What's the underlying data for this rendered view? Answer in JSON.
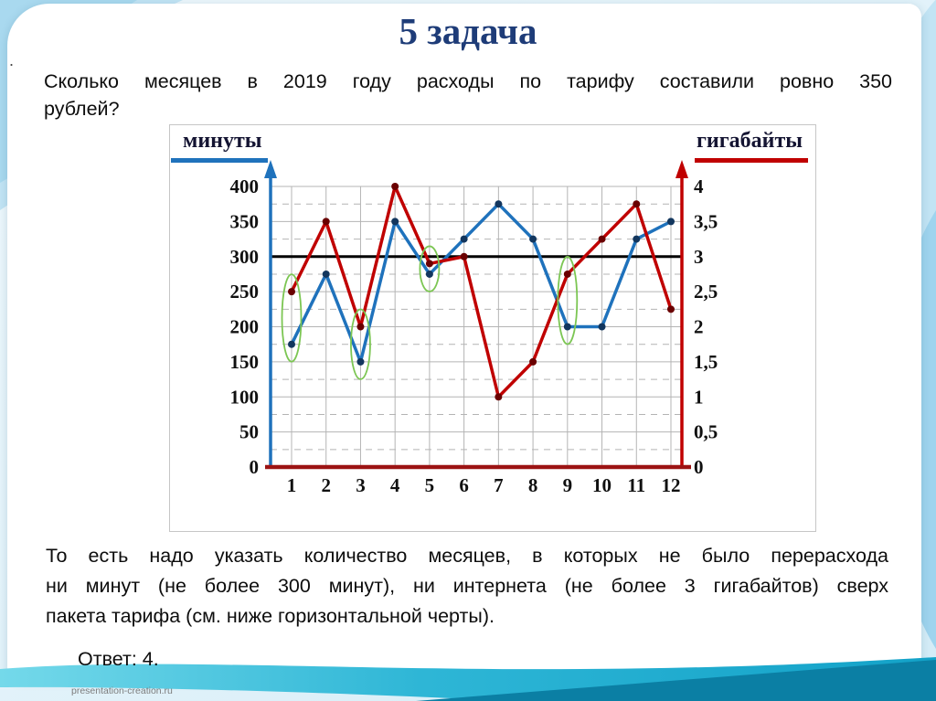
{
  "slide": {
    "title": "5 задача",
    "bullet_dot": ".",
    "question_lines": [
      "Сколько месяцев в 2019 году расходы по тарифу составили ровно 350",
      "рублей?"
    ],
    "explanation_lines": [
      "То есть надо указать количество месяцев, в которых не было перерасхода",
      "ни минут (не более 300 минут), ни интернета (не более 3 гигабайтов) сверх",
      "пакета тарифа (см. ниже горизонтальной черты)."
    ],
    "answer": "Ответ: 4.",
    "watermark": "presentation-creation.ru",
    "colors": {
      "title": "#1e3c78",
      "ribbon_main": "#2cb3d4",
      "ribbon_dark": "#0b7fa4",
      "wave_light": "#c2e4f4",
      "wave_deep": "#a9d9ef"
    }
  },
  "chart_data": {
    "type": "line",
    "title": "",
    "x": [
      1,
      2,
      3,
      4,
      5,
      6,
      7,
      8,
      9,
      10,
      11,
      12
    ],
    "x_ticks": [
      "1",
      "2",
      "3",
      "4",
      "5",
      "6",
      "7",
      "8",
      "9",
      "10",
      "11",
      "12"
    ],
    "series": [
      {
        "name": "минуты",
        "axis": "left",
        "color": "#1f72bc",
        "marker_color": "#12365e",
        "values": [
          175,
          275,
          150,
          350,
          275,
          325,
          375,
          325,
          200,
          200,
          325,
          350
        ]
      },
      {
        "name": "гигабайты",
        "axis": "right",
        "color": "#c00000",
        "marker_color": "#6a0000",
        "values": [
          2.5,
          3.5,
          2,
          4,
          2.9,
          3,
          1,
          1.5,
          2.75,
          3.25,
          3.75,
          2.25
        ]
      }
    ],
    "left_axis": {
      "label": "минуты",
      "min": 0,
      "max": 400,
      "step": 50,
      "ticks": [
        "400",
        "350",
        "300",
        "250",
        "200",
        "150",
        "100",
        "50",
        "0"
      ]
    },
    "right_axis": {
      "label": "гигабайты",
      "min": 0,
      "max": 4,
      "step": 0.5,
      "ticks": [
        "4",
        "3,5",
        "3",
        "2,5",
        "2",
        "1,5",
        "1",
        "0,5",
        "0"
      ]
    },
    "threshold_left": 300,
    "threshold_color": "#000000",
    "highlighted_months": [
      1,
      3,
      5,
      9
    ],
    "highlight_color": "#7cc653",
    "grid": true,
    "legend_position": "top",
    "axis_colors": {
      "left": "#1f72bc",
      "right": "#c00000",
      "bottom": "#9c1313"
    }
  }
}
